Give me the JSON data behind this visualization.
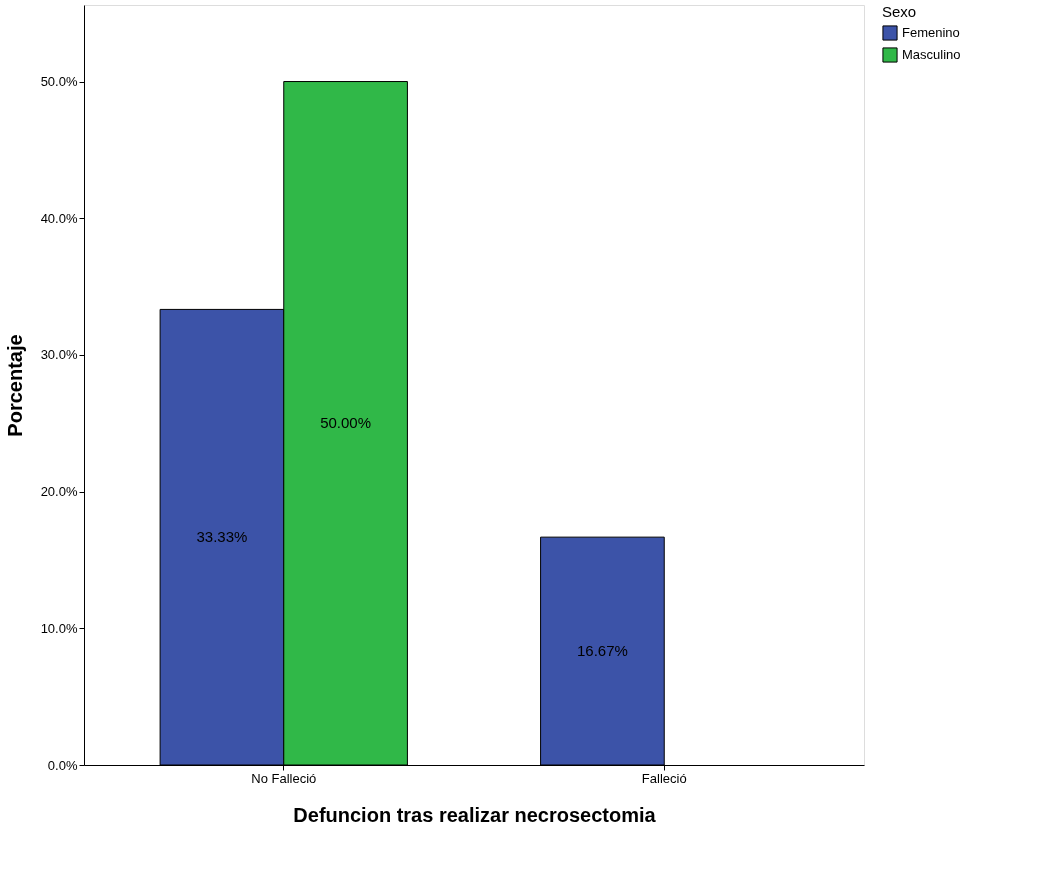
{
  "chart_data": {
    "type": "bar",
    "xlabel": "Defuncion tras realizar necrosectomia",
    "ylabel": "Porcentaje",
    "legend_title": "Sexo",
    "legend": "top right",
    "grid": false,
    "categories": [
      "No Falleció",
      "Falleció"
    ],
    "series": [
      {
        "name": "Femenino",
        "color": "#3c53a8",
        "values": [
          33.33,
          16.67
        ],
        "value_labels": [
          "33.33%",
          "16.67%"
        ]
      },
      {
        "name": "Masculino",
        "color": "#30b848",
        "values": [
          50.0,
          null
        ],
        "value_labels": [
          "50.00%",
          null
        ]
      }
    ],
    "ylim": [
      0,
      55.6
    ],
    "yticks": [
      {
        "value": 0,
        "label": "0.0%"
      },
      {
        "value": 10,
        "label": "10.0%"
      },
      {
        "value": 20,
        "label": "20.0%"
      },
      {
        "value": 30,
        "label": "30.0%"
      },
      {
        "value": 40,
        "label": "40.0%"
      },
      {
        "value": 50,
        "label": "50.0%"
      }
    ]
  }
}
